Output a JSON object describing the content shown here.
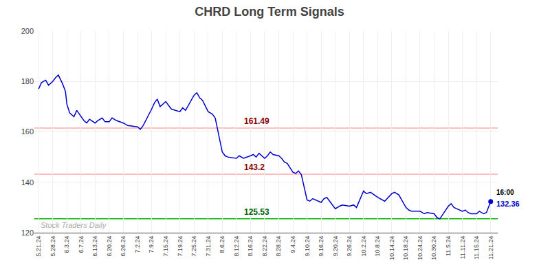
{
  "chart_data": {
    "type": "line",
    "title": "CHRD Long Term Signals",
    "x": [
      0.0,
      0.2,
      0.5,
      0.7,
      1.0,
      1.2,
      1.4,
      1.7,
      1.9,
      2.0,
      2.2,
      2.5,
      2.7,
      3.0,
      3.2,
      3.4,
      3.6,
      4.0,
      4.2,
      4.5,
      4.7,
      5.0,
      5.2,
      5.5,
      6.0,
      6.3,
      7.0,
      7.2,
      7.4,
      8.0,
      8.2,
      8.4,
      8.6,
      9.0,
      9.2,
      9.4,
      10.0,
      10.2,
      10.4,
      11.0,
      11.2,
      11.4,
      11.6,
      12.0,
      12.3,
      12.5,
      13.0,
      13.2,
      13.4,
      14.0,
      14.2,
      14.5,
      15.0,
      15.2,
      15.4,
      15.6,
      16.0,
      16.2,
      16.4,
      16.6,
      17.0,
      17.2,
      17.4,
      17.6,
      18.0,
      18.2,
      18.4,
      18.6,
      19.0,
      19.2,
      19.4,
      20.0,
      20.2,
      20.4,
      20.6,
      21.0,
      21.3,
      21.5,
      22.0,
      22.3,
      22.5,
      23.0,
      23.2,
      23.5,
      24.0,
      24.3,
      24.5,
      25.0,
      25.2,
      25.5,
      25.7,
      26.0,
      26.2,
      26.4,
      27.0,
      27.3,
      27.5,
      28.0,
      28.2,
      28.4,
      29.0,
      29.2,
      29.4,
      30.0,
      30.2,
      30.4,
      30.6,
      31.0,
      31.2,
      31.5,
      31.7,
      32.0
    ],
    "series": [
      {
        "color": "#0000cc",
        "values": [
          177.0,
          179.5,
          180.5,
          178.5,
          180.0,
          181.5,
          182.5,
          179.0,
          176.0,
          171.0,
          167.5,
          166.0,
          168.5,
          166.0,
          164.5,
          163.5,
          165.0,
          163.5,
          164.5,
          165.5,
          164.0,
          164.0,
          165.5,
          164.5,
          163.5,
          162.5,
          162.0,
          161.0,
          162.5,
          169.0,
          171.5,
          173.0,
          170.0,
          172.0,
          170.5,
          169.0,
          168.0,
          169.5,
          168.5,
          174.5,
          175.5,
          173.5,
          172.5,
          168.0,
          167.0,
          165.5,
          152.0,
          150.5,
          150.0,
          149.5,
          150.5,
          149.5,
          150.5,
          151.0,
          150.0,
          151.5,
          149.5,
          150.5,
          152.0,
          151.0,
          150.5,
          149.5,
          148.0,
          147.5,
          144.0,
          143.5,
          144.5,
          143.0,
          133.0,
          132.5,
          133.5,
          132.0,
          133.5,
          134.0,
          132.5,
          129.5,
          130.5,
          131.0,
          130.5,
          131.0,
          130.0,
          136.5,
          135.5,
          136.0,
          134.0,
          133.0,
          132.5,
          135.5,
          136.0,
          135.0,
          133.0,
          130.0,
          129.0,
          128.5,
          128.5,
          127.5,
          128.0,
          127.5,
          126.0,
          125.5,
          130.5,
          131.5,
          130.0,
          128.5,
          129.0,
          128.0,
          127.5,
          127.5,
          128.5,
          127.5,
          128.0,
          132.36
        ]
      }
    ],
    "xlim": [
      -0.3,
      32.5
    ],
    "xticks": [
      {
        "value": 0,
        "label": "5.21.24"
      },
      {
        "value": 1,
        "label": "5.28.24"
      },
      {
        "value": 2,
        "label": "6.3.24"
      },
      {
        "value": 3,
        "label": "6.7.24"
      },
      {
        "value": 4,
        "label": "6.13.24"
      },
      {
        "value": 5,
        "label": "6.20.24"
      },
      {
        "value": 6,
        "label": "6.26.24"
      },
      {
        "value": 7,
        "label": "7.2.24"
      },
      {
        "value": 8,
        "label": "7.9.24"
      },
      {
        "value": 9,
        "label": "7.15.24"
      },
      {
        "value": 10,
        "label": "7.19.24"
      },
      {
        "value": 11,
        "label": "7.25.24"
      },
      {
        "value": 12,
        "label": "7.31.24"
      },
      {
        "value": 13,
        "label": "8.6.24"
      },
      {
        "value": 14,
        "label": "8.12.24"
      },
      {
        "value": 15,
        "label": "8.16.24"
      },
      {
        "value": 16,
        "label": "8.22.24"
      },
      {
        "value": 17,
        "label": "8.28.24"
      },
      {
        "value": 18,
        "label": "9.4.24"
      },
      {
        "value": 19,
        "label": "9.10.24"
      },
      {
        "value": 20,
        "label": "9.16.24"
      },
      {
        "value": 21,
        "label": "9.20.24"
      },
      {
        "value": 22,
        "label": "9.26.24"
      },
      {
        "value": 23,
        "label": "10.2.24"
      },
      {
        "value": 24,
        "label": "10.8.24"
      },
      {
        "value": 25,
        "label": "10.14.24"
      },
      {
        "value": 26,
        "label": "10.18.24"
      },
      {
        "value": 27,
        "label": "10.24.24"
      },
      {
        "value": 28,
        "label": "10.30.24"
      },
      {
        "value": 29,
        "label": "11.5.24"
      },
      {
        "value": 30,
        "label": "11.11.24"
      },
      {
        "value": 31,
        "label": "11.15.24"
      },
      {
        "value": 32,
        "label": "11.21.24"
      }
    ],
    "ylim": [
      120,
      200
    ],
    "yticks": [
      120,
      140,
      160,
      180,
      200
    ],
    "grid": true,
    "reference_lines": [
      {
        "y": 161.49,
        "label": "161.49",
        "color": "#ffaaaa",
        "label_color": "#8b0000"
      },
      {
        "y": 143.2,
        "label": "143.2",
        "color": "#ffaaaa",
        "label_color": "#8b0000"
      },
      {
        "y": 125.53,
        "label": "125.53",
        "color": "#00bb00",
        "label_color": "#006600"
      }
    ],
    "last_point": {
      "label": "16:00",
      "value": 132.36,
      "color": "#0000cc"
    },
    "watermark": {
      "text": "Stock Traders Daily",
      "color": "#aaaaaa"
    }
  }
}
